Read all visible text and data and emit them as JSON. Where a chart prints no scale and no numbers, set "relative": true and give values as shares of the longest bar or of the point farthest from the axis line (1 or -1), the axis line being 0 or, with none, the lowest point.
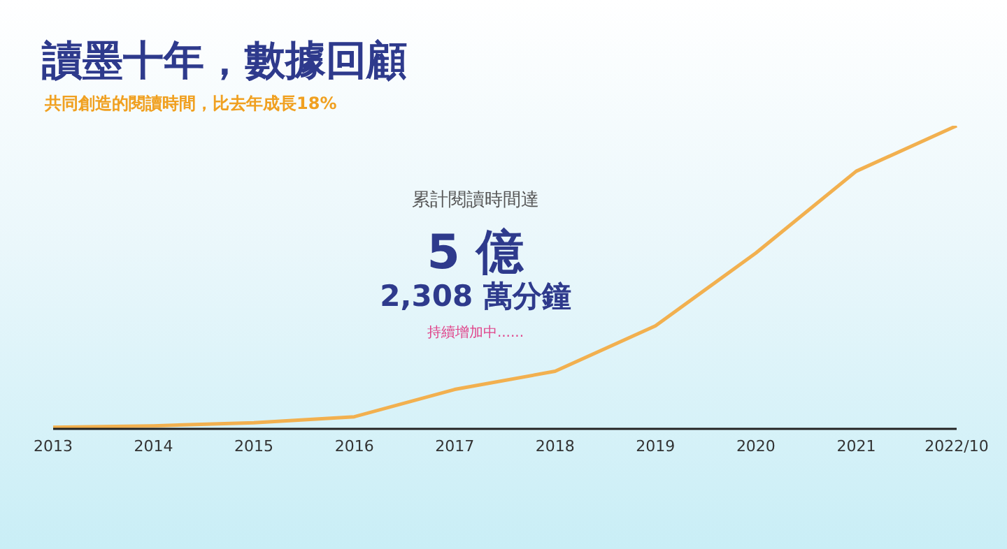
{
  "chart_data": {
    "type": "line",
    "title": "讀墨十年，數據回顧",
    "subtitle": "共同創造的閱讀時間，比去年成長18%",
    "relative": true,
    "categories": [
      "2013",
      "2014",
      "2015",
      "2016",
      "2017",
      "2018",
      "2019",
      "2020",
      "2021",
      "2022/10"
    ],
    "series": [
      {
        "color": "#f2b04f",
        "values": [
          0.005,
          0.01,
          0.02,
          0.04,
          0.13,
          0.19,
          0.34,
          0.58,
          0.85,
          1
        ]
      }
    ],
    "marker": "none",
    "line_style": "solid",
    "grid": false,
    "legend": false,
    "annotations": [
      "累計閱讀時間達",
      "5 億",
      "2,308 萬分鐘",
      "持續增加中......"
    ]
  }
}
